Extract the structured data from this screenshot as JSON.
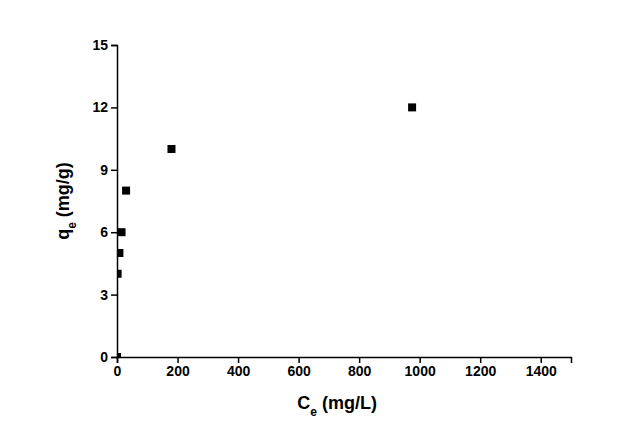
{
  "chart_data": {
    "type": "scatter",
    "x_label": "Ce (mg/L)",
    "y_label": "qe (mg/g)",
    "x": [
      0,
      2,
      8,
      15,
      30,
      180,
      975
    ],
    "values": [
      0,
      4,
      5,
      6,
      8,
      10,
      12
    ],
    "color": "#000000",
    "marker": "square",
    "xlim": [
      0,
      1500
    ],
    "xticks": [
      0,
      200,
      400,
      600,
      800,
      1000,
      1200,
      1400
    ],
    "ylim": [
      0,
      15
    ],
    "yticks": [
      0,
      3,
      6,
      9,
      12,
      15
    ],
    "grid": false
  }
}
